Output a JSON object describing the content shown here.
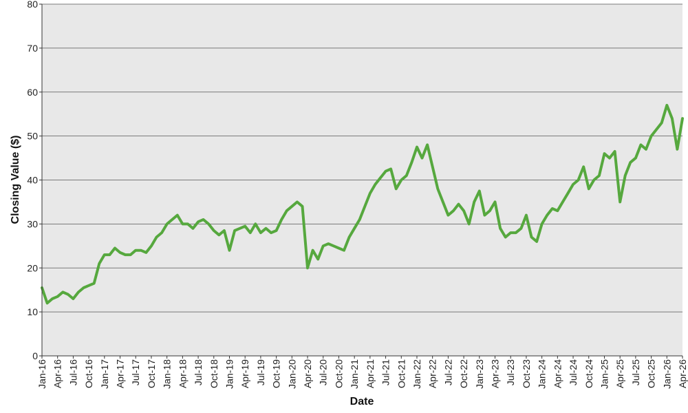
{
  "colors": {
    "line": "#56A83E",
    "plot_bg": "#E8E8E8",
    "grid": "#555555",
    "axis": "#333333"
  },
  "chart_data": {
    "type": "line",
    "title": "",
    "xlabel": "Date",
    "ylabel": "Closing Value ($)",
    "ylim": [
      0,
      80
    ],
    "yticks": [
      0,
      10,
      20,
      30,
      40,
      50,
      60,
      70,
      80
    ],
    "xlim": [
      "2016-01",
      "2026-04"
    ],
    "xticks": [
      "Jan-16",
      "Apr-16",
      "Jul-16",
      "Oct-16",
      "Jan-17",
      "Apr-17",
      "Jul-17",
      "Oct-17",
      "Jan-18",
      "Apr-18",
      "Jul-18",
      "Oct-18",
      "Jan-19",
      "Apr-19",
      "Jul-19",
      "Oct-19",
      "Jan-20",
      "Apr-20",
      "Jul-20",
      "Oct-20",
      "Jan-21",
      "Apr-21",
      "Jul-21",
      "Oct-21",
      "Jan-22",
      "Apr-22",
      "Jul-22",
      "Oct-22",
      "Jan-23",
      "Apr-23",
      "Jul-23",
      "Oct-23",
      "Jan-24",
      "Apr-24",
      "Jul-24",
      "Oct-24",
      "Jan-25",
      "Apr-25",
      "Jul-25",
      "Oct-25",
      "Jan-26",
      "Apr-26"
    ],
    "grid": "horizontal",
    "legend": "none",
    "series": [
      {
        "x": [
          "2016-01",
          "2016-02",
          "2016-03",
          "2016-04",
          "2016-05",
          "2016-06",
          "2016-07",
          "2016-08",
          "2016-09",
          "2016-10",
          "2016-11",
          "2016-12",
          "2017-01",
          "2017-02",
          "2017-03",
          "2017-04",
          "2017-05",
          "2017-06",
          "2017-07",
          "2017-08",
          "2017-09",
          "2017-10",
          "2017-11",
          "2017-12",
          "2018-01",
          "2018-02",
          "2018-03",
          "2018-04",
          "2018-05",
          "2018-06",
          "2018-07",
          "2018-08",
          "2018-09",
          "2018-10",
          "2018-11",
          "2018-12",
          "2019-01",
          "2019-02",
          "2019-03",
          "2019-04",
          "2019-05",
          "2019-06",
          "2019-07",
          "2019-08",
          "2019-09",
          "2019-10",
          "2019-11",
          "2019-12",
          "2020-01",
          "2020-02",
          "2020-03",
          "2020-04",
          "2020-05",
          "2020-06",
          "2020-07",
          "2020-08",
          "2020-09",
          "2020-10",
          "2020-11",
          "2020-12",
          "2021-01",
          "2021-02",
          "2021-03",
          "2021-04",
          "2021-05",
          "2021-06",
          "2021-07",
          "2021-08",
          "2021-09",
          "2021-10",
          "2021-11",
          "2021-12",
          "2022-01",
          "2022-02",
          "2022-03",
          "2022-04",
          "2022-05",
          "2022-06",
          "2022-07",
          "2022-08",
          "2022-09",
          "2022-10",
          "2022-11",
          "2022-12",
          "2023-01",
          "2023-02",
          "2023-03",
          "2023-04",
          "2023-05",
          "2023-06",
          "2023-07",
          "2023-08",
          "2023-09",
          "2023-10",
          "2023-11",
          "2023-12",
          "2024-01",
          "2024-02",
          "2024-03",
          "2024-04",
          "2024-05",
          "2024-06",
          "2024-07",
          "2024-08",
          "2024-09",
          "2024-10",
          "2024-11",
          "2024-12",
          "2025-01",
          "2025-02",
          "2025-03",
          "2025-04",
          "2025-05",
          "2025-06",
          "2025-07",
          "2025-08",
          "2025-09",
          "2025-10",
          "2025-11",
          "2025-12",
          "2026-01",
          "2026-02",
          "2026-03",
          "2026-04"
        ],
        "values": [
          15.5,
          12.0,
          13.0,
          13.5,
          14.5,
          14.0,
          13.0,
          14.5,
          15.5,
          16.0,
          16.5,
          21.0,
          23.0,
          23.0,
          24.5,
          23.5,
          23.0,
          23.0,
          24.0,
          24.0,
          23.5,
          25.0,
          27.0,
          28.0,
          30.0,
          31.0,
          32.0,
          30.0,
          30.0,
          29.0,
          30.5,
          31.0,
          30.0,
          28.5,
          27.5,
          28.5,
          24.0,
          28.5,
          29.0,
          29.5,
          28.0,
          30.0,
          28.0,
          29.0,
          28.0,
          28.5,
          31.0,
          33.0,
          34.0,
          35.0,
          34.0,
          20.0,
          24.0,
          22.0,
          25.0,
          25.5,
          25.0,
          24.5,
          24.0,
          27.0,
          29.0,
          31.0,
          34.0,
          37.0,
          39.0,
          40.5,
          42.0,
          42.5,
          38.0,
          40.0,
          41.0,
          44.0,
          47.5,
          45.0,
          48.0,
          43.0,
          38.0,
          35.0,
          32.0,
          33.0,
          34.5,
          33.0,
          30.0,
          35.0,
          37.5,
          32.0,
          33.0,
          35.0,
          29.0,
          27.0,
          28.0,
          28.0,
          29.0,
          32.0,
          27.0,
          26.0,
          30.0,
          32.0,
          33.5,
          33.0,
          35.0,
          37.0,
          39.0,
          40.0,
          43.0,
          38.0,
          40.0,
          41.0,
          46.0,
          45.0,
          46.5,
          35.0,
          41.0,
          44.0,
          45.0,
          48.0,
          47.0,
          50.0,
          51.5,
          53.0,
          57.0,
          54.0,
          47.0,
          54.0
        ]
      }
    ]
  }
}
